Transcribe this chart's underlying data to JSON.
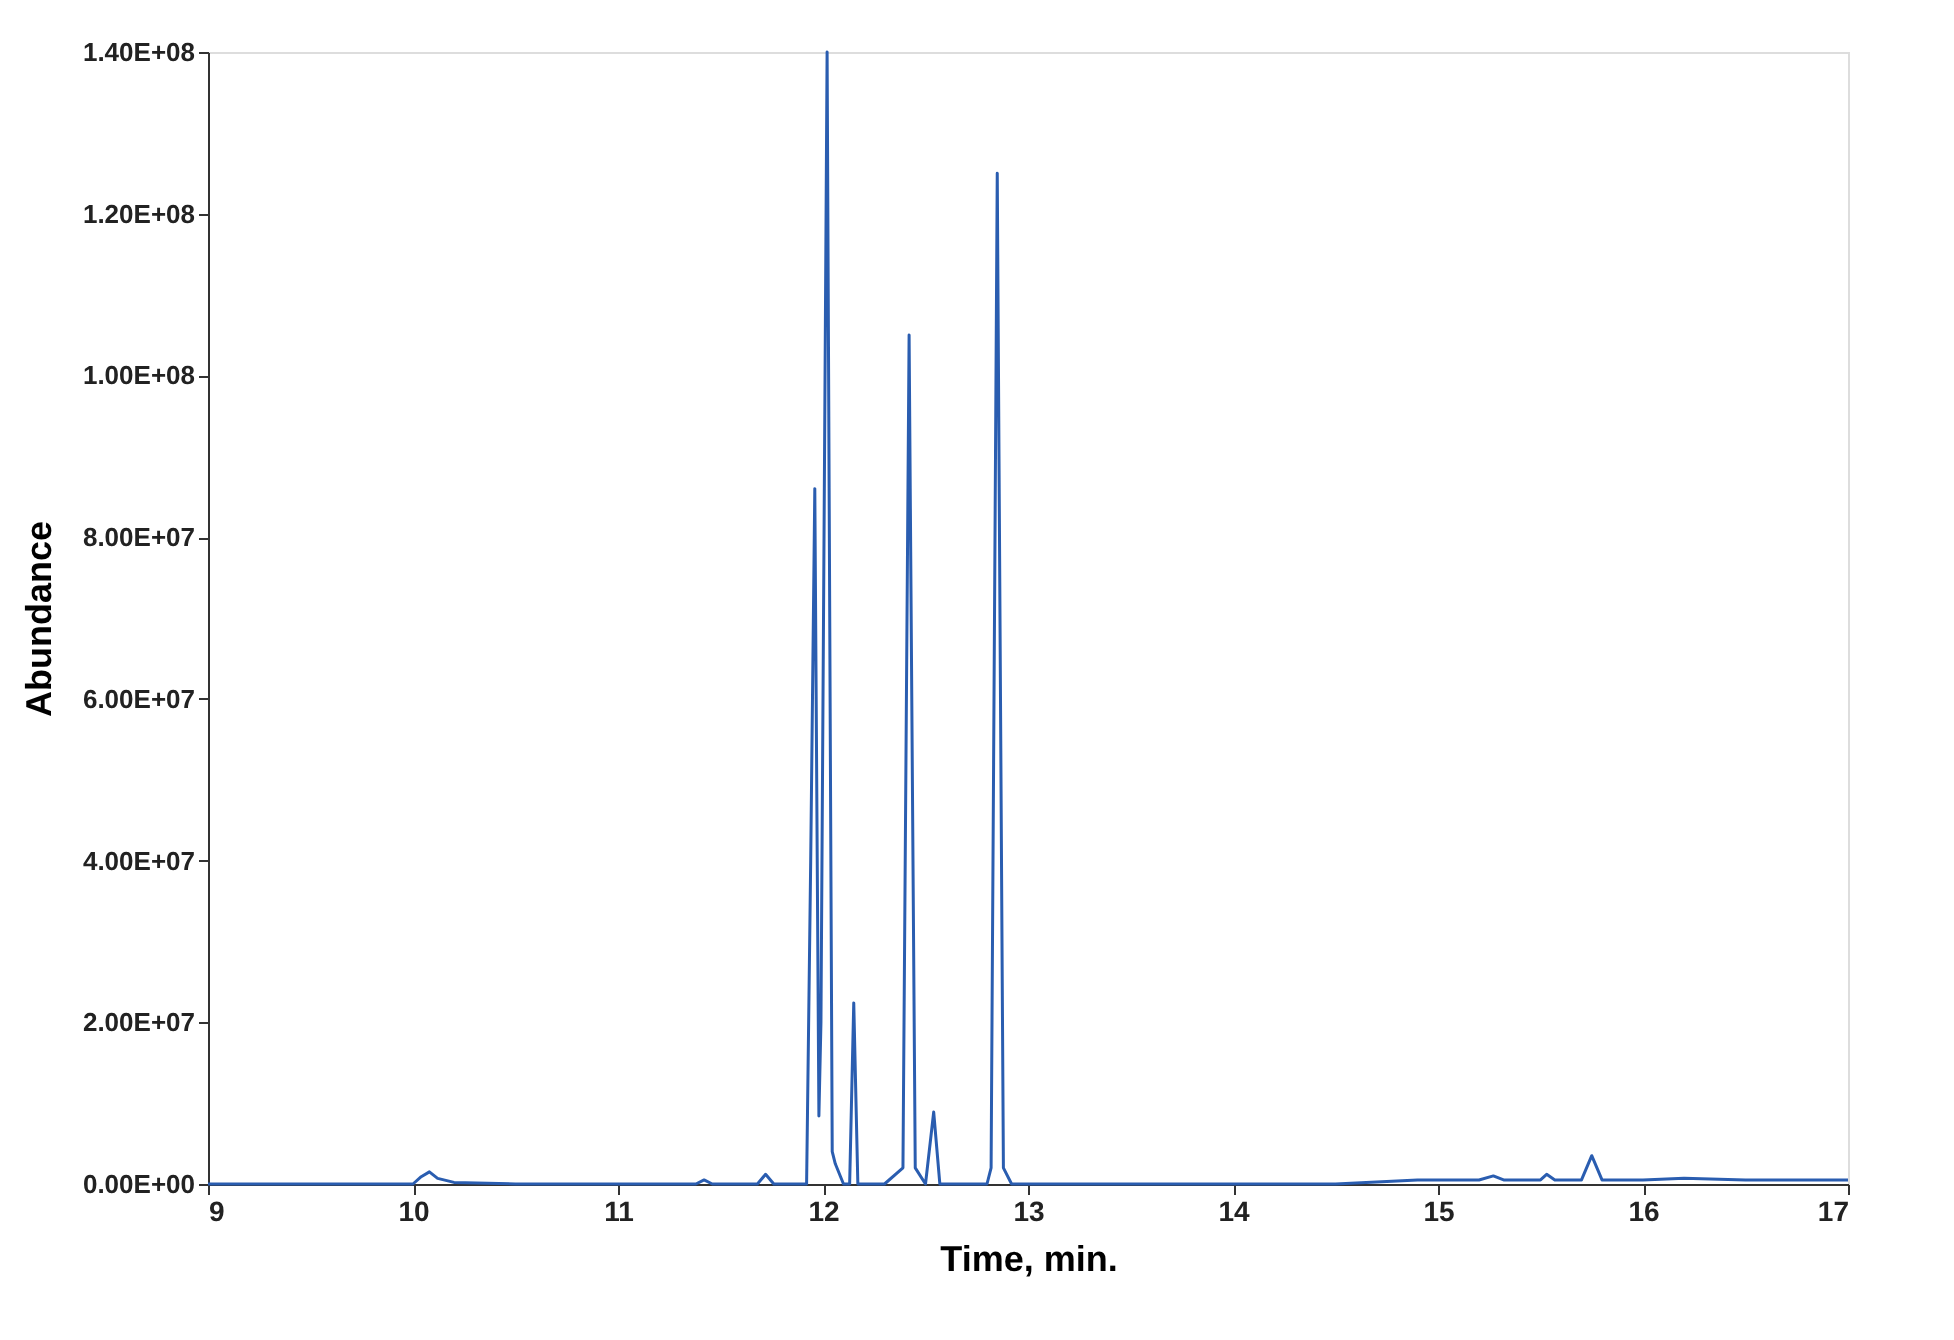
{
  "chart_data": {
    "type": "line",
    "xlabel": "Time, min.",
    "ylabel": "Abundance",
    "x": [
      9,
      9.5,
      10.0,
      10.04,
      10.08,
      10.12,
      10.2,
      10.5,
      11.0,
      11.38,
      11.42,
      11.46,
      11.68,
      11.72,
      11.76,
      11.92,
      11.94,
      11.96,
      11.98,
      11.99,
      12.02,
      12.045,
      12.06,
      12.1,
      12.13,
      12.15,
      12.17,
      12.2,
      12.3,
      12.39,
      12.42,
      12.45,
      12.5,
      12.54,
      12.57,
      12.8,
      12.82,
      12.85,
      12.88,
      12.92,
      13.5,
      14.0,
      14.5,
      14.9,
      15.2,
      15.27,
      15.32,
      15.5,
      15.53,
      15.57,
      15.7,
      15.75,
      15.8,
      16.0,
      16.2,
      16.5,
      17.0
    ],
    "series": [
      {
        "color": "#2a5db0",
        "values": [
          0,
          0,
          0,
          900000,
          1500000,
          700000,
          200000,
          0,
          0,
          0,
          500000,
          0,
          0,
          1200000,
          0,
          0,
          40000000,
          86000000,
          8400000,
          20000000,
          140000000,
          4000000,
          2500000,
          0,
          0,
          22400000,
          0,
          0,
          0,
          2000000,
          105000000,
          2000000,
          0,
          8900000,
          0,
          0,
          2000000,
          125000000,
          2000000,
          0,
          0,
          0,
          0,
          500000,
          500000,
          1000000,
          500000,
          500000,
          1200000,
          500000,
          500000,
          3500000,
          500000,
          500000,
          700000,
          500000,
          500000
        ]
      }
    ],
    "xlim": [
      9,
      17
    ],
    "xticks": [
      9,
      10,
      11,
      12,
      13,
      14,
      15,
      16,
      17
    ],
    "ylim": [
      0,
      140000000
    ],
    "yticks": [
      {
        "value": 0,
        "label": "0.00E+00"
      },
      {
        "value": 20000000,
        "label": "2.00E+07"
      },
      {
        "value": 40000000,
        "label": "4.00E+07"
      },
      {
        "value": 60000000,
        "label": "6.00E+07"
      },
      {
        "value": 80000000,
        "label": "8.00E+07"
      },
      {
        "value": 100000000,
        "label": "1.00E+08"
      },
      {
        "value": 120000000,
        "label": "1.20E+08"
      },
      {
        "value": 140000000,
        "label": "1.40E+08"
      }
    ],
    "grid": false,
    "marker": "none",
    "line_style": "solid"
  }
}
